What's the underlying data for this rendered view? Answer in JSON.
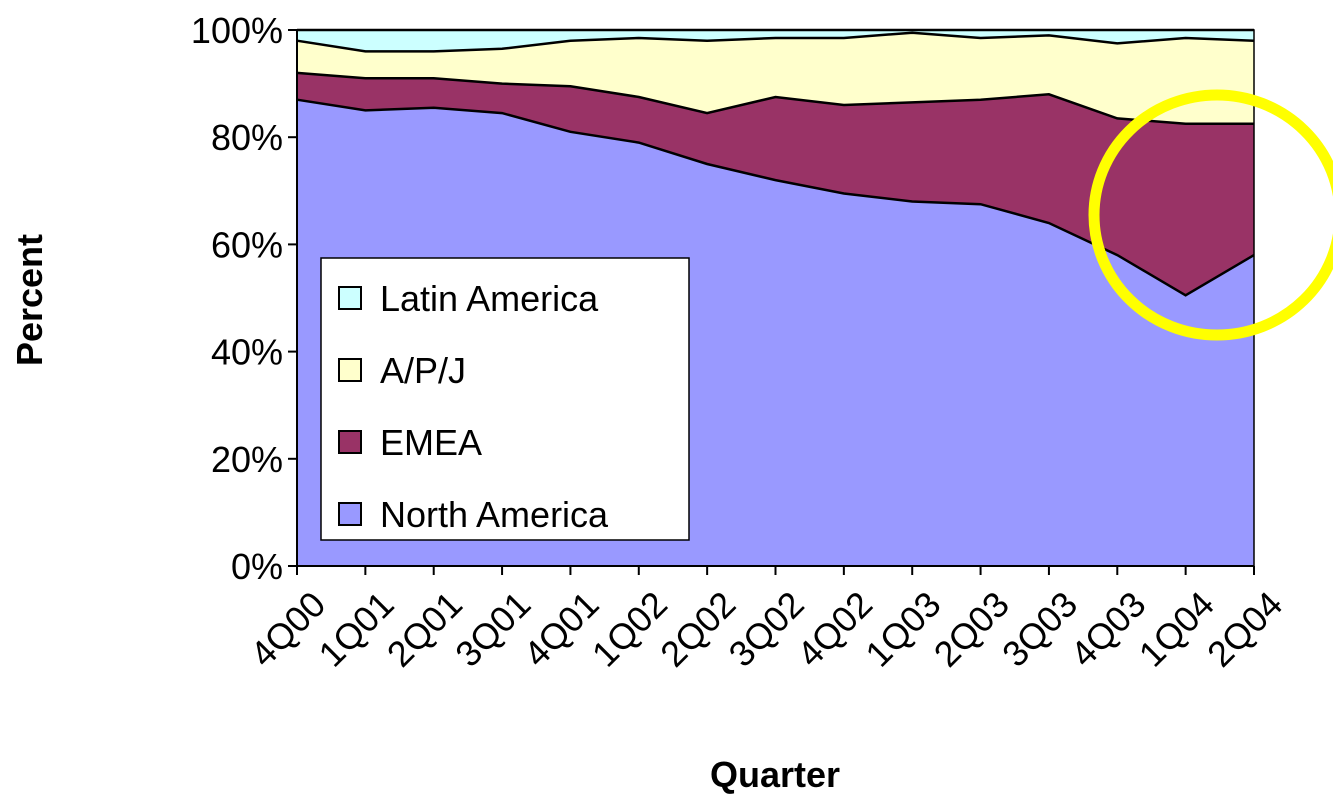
{
  "chart_data": {
    "type": "area",
    "stacked": true,
    "normalized": true,
    "categories": [
      "4Q00",
      "1Q01",
      "2Q01",
      "3Q01",
      "4Q01",
      "1Q02",
      "2Q02",
      "3Q02",
      "4Q02",
      "1Q03",
      "2Q03",
      "3Q03",
      "4Q03",
      "1Q04",
      "2Q04"
    ],
    "series": [
      {
        "name": "North America",
        "color": "#9999ff",
        "values": [
          87,
          85,
          85.5,
          84.5,
          81,
          79,
          75,
          72,
          69.5,
          68,
          67.5,
          64,
          58,
          50.5,
          58
        ]
      },
      {
        "name": "EMEA",
        "color": "#993366",
        "values": [
          5,
          6,
          5.5,
          5.5,
          8.5,
          8.5,
          9.5,
          15.5,
          16.5,
          18.5,
          19.5,
          24,
          25.5,
          32,
          24.5
        ]
      },
      {
        "name": "A/P/J",
        "color": "#ffffcc",
        "values": [
          6,
          5,
          5,
          6.5,
          8.5,
          11,
          13.5,
          11,
          12.5,
          13,
          11.5,
          11,
          14,
          16,
          15.5
        ]
      },
      {
        "name": "Latin America",
        "color": "#ccffff",
        "values": [
          2,
          4,
          4,
          3.5,
          2,
          1.5,
          2,
          1.5,
          1.5,
          0.5,
          1.5,
          1,
          2.5,
          1.5,
          2
        ]
      }
    ],
    "y_ticks": [
      "0%",
      "20%",
      "40%",
      "60%",
      "80%",
      "100%"
    ],
    "ylim": [
      0,
      100
    ],
    "xlabel": "Quarter",
    "ylabel": "Percent",
    "grid": false,
    "legend": {
      "placement": "inside-left",
      "entries": [
        "Latin America",
        "A/P/J",
        "EMEA",
        "North America"
      ]
    },
    "annotation": {
      "shape": "circle",
      "color": "#ffff00",
      "target": "1Q04-2Q04"
    }
  }
}
